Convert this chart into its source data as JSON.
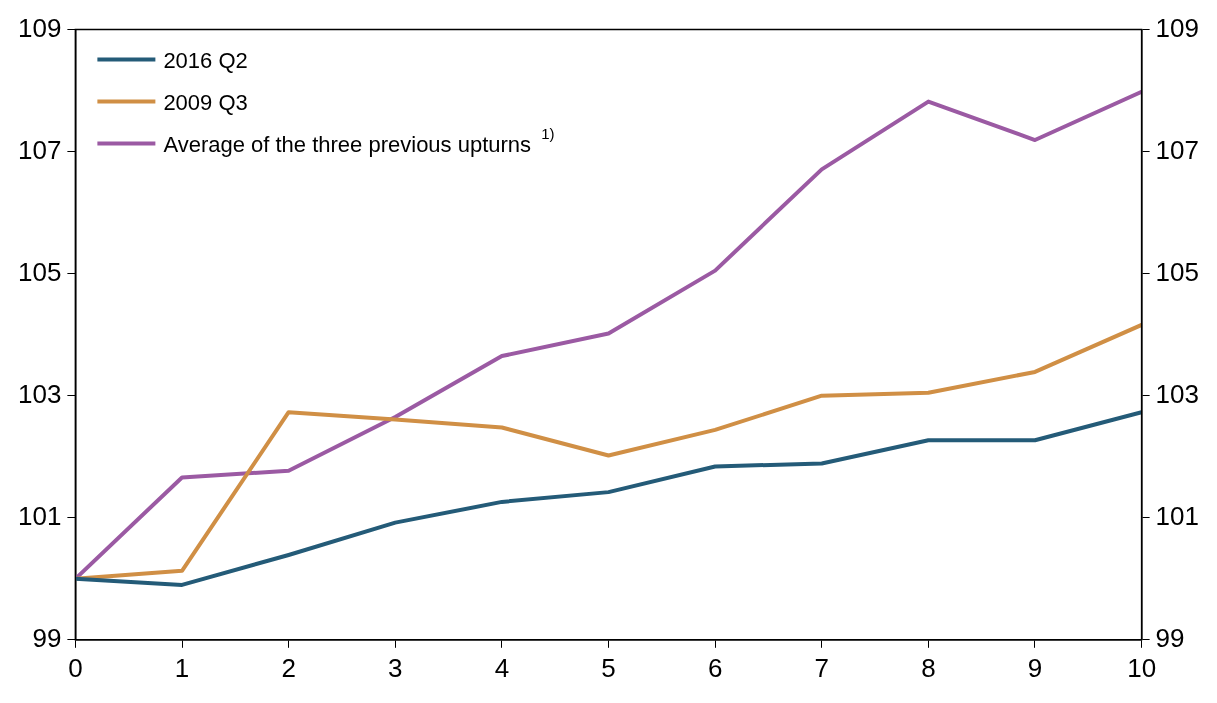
{
  "chart_data": {
    "type": "line",
    "x": [
      0,
      1,
      2,
      3,
      4,
      5,
      6,
      7,
      8,
      9,
      10
    ],
    "series": [
      {
        "name": "2016 Q2",
        "color": "#245b78",
        "values": [
          100.0,
          99.9,
          100.39,
          100.92,
          101.26,
          101.42,
          101.84,
          101.89,
          102.27,
          102.27,
          102.73
        ]
      },
      {
        "name": "2009 Q3",
        "color": "#d08f45",
        "values": [
          100.0,
          100.13,
          102.73,
          102.61,
          102.48,
          102.02,
          102.44,
          103.0,
          103.05,
          103.39,
          104.16
        ]
      },
      {
        "name": "Average of the three previous upturns $^{1)}$",
        "color": "#9b5aa3",
        "values": [
          100.0,
          101.66,
          101.77,
          102.65,
          103.65,
          104.02,
          105.05,
          106.71,
          107.82,
          107.19,
          107.98
        ]
      }
    ],
    "xlim": [
      0,
      10
    ],
    "xticks": [
      0,
      1,
      2,
      3,
      4,
      5,
      6,
      7,
      8,
      9,
      10
    ],
    "ylim": [
      99,
      109
    ],
    "yticks": [
      99,
      101,
      103,
      105,
      107,
      109
    ],
    "y2lim": [
      99,
      109
    ],
    "y2ticks": [
      99,
      101,
      103,
      105,
      107,
      109
    ],
    "grid": false,
    "legend": "top left",
    "marker": "none",
    "line_style": "solid"
  }
}
